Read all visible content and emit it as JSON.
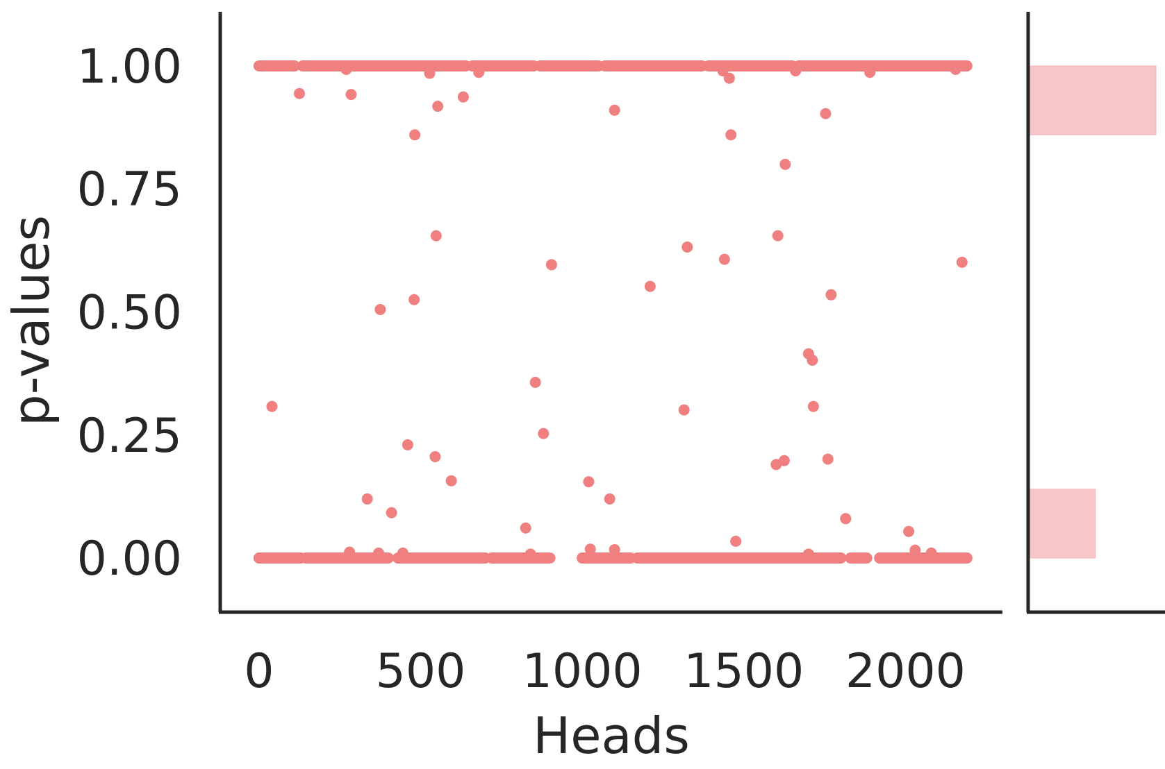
{
  "chart_data": {
    "type": "scatter",
    "title": "",
    "xlabel": "Heads",
    "ylabel": "p-values",
    "xlim": [
      -120,
      2300
    ],
    "ylim": [
      -0.11,
      1.11
    ],
    "xticks": [
      0,
      500,
      1000,
      1500,
      2000
    ],
    "xtick_labels": [
      "0",
      "500",
      "1000",
      "1500",
      "2000"
    ],
    "yticks": [
      0.0,
      0.25,
      0.5,
      0.75,
      1.0
    ],
    "ytick_labels": [
      "0.00",
      "0.25",
      "0.50",
      "0.75",
      "1.00"
    ],
    "grid": false,
    "color": "#f08080",
    "dense_bands": [
      {
        "y": 1.0,
        "x_segments": [
          [
            0,
            110
          ],
          [
            135,
            640
          ],
          [
            660,
            850
          ],
          [
            870,
            1050
          ],
          [
            1070,
            1370
          ],
          [
            1390,
            1650
          ],
          [
            1670,
            2190
          ]
        ]
      },
      {
        "y": 0.0,
        "x_segments": [
          [
            0,
            130
          ],
          [
            145,
            400
          ],
          [
            430,
            700
          ],
          [
            720,
            900
          ],
          [
            1000,
            1150
          ],
          [
            1170,
            1800
          ],
          [
            1830,
            1880
          ],
          [
            1920,
            2190
          ]
        ]
      }
    ],
    "points": [
      {
        "x": 40,
        "y": 0.308
      },
      {
        "x": 125,
        "y": 0.944
      },
      {
        "x": 270,
        "y": 0.993
      },
      {
        "x": 285,
        "y": 0.942
      },
      {
        "x": 335,
        "y": 0.12
      },
      {
        "x": 375,
        "y": 0.505
      },
      {
        "x": 410,
        "y": 0.092
      },
      {
        "x": 460,
        "y": 0.23
      },
      {
        "x": 480,
        "y": 0.525
      },
      {
        "x": 482,
        "y": 0.86
      },
      {
        "x": 528,
        "y": 0.985
      },
      {
        "x": 545,
        "y": 0.206
      },
      {
        "x": 548,
        "y": 0.655
      },
      {
        "x": 553,
        "y": 0.918
      },
      {
        "x": 595,
        "y": 0.157
      },
      {
        "x": 632,
        "y": 0.937
      },
      {
        "x": 680,
        "y": 0.987
      },
      {
        "x": 825,
        "y": 0.061
      },
      {
        "x": 855,
        "y": 0.357
      },
      {
        "x": 880,
        "y": 0.253
      },
      {
        "x": 905,
        "y": 0.596
      },
      {
        "x": 1020,
        "y": 0.155
      },
      {
        "x": 1025,
        "y": 0.018
      },
      {
        "x": 1085,
        "y": 0.12
      },
      {
        "x": 1100,
        "y": 0.91
      },
      {
        "x": 1100,
        "y": 0.017
      },
      {
        "x": 1210,
        "y": 0.552
      },
      {
        "x": 1315,
        "y": 0.301
      },
      {
        "x": 1325,
        "y": 0.632
      },
      {
        "x": 1435,
        "y": 0.99
      },
      {
        "x": 1440,
        "y": 0.607
      },
      {
        "x": 1455,
        "y": 0.975
      },
      {
        "x": 1460,
        "y": 0.86
      },
      {
        "x": 1475,
        "y": 0.034
      },
      {
        "x": 1600,
        "y": 0.19
      },
      {
        "x": 1605,
        "y": 0.655
      },
      {
        "x": 1625,
        "y": 0.198
      },
      {
        "x": 1628,
        "y": 0.8
      },
      {
        "x": 1660,
        "y": 0.99
      },
      {
        "x": 1700,
        "y": 0.415
      },
      {
        "x": 1712,
        "y": 0.402
      },
      {
        "x": 1715,
        "y": 0.308
      },
      {
        "x": 1753,
        "y": 0.903
      },
      {
        "x": 1760,
        "y": 0.201
      },
      {
        "x": 1770,
        "y": 0.535
      },
      {
        "x": 1815,
        "y": 0.08
      },
      {
        "x": 1890,
        "y": 0.987
      },
      {
        "x": 2010,
        "y": 0.054
      },
      {
        "x": 2030,
        "y": 0.016
      },
      {
        "x": 2155,
        "y": 0.993
      },
      {
        "x": 2175,
        "y": 0.601
      },
      {
        "x": 280,
        "y": 0.012
      },
      {
        "x": 370,
        "y": 0.01
      },
      {
        "x": 445,
        "y": 0.01
      },
      {
        "x": 840,
        "y": 0.008
      },
      {
        "x": 1700,
        "y": 0.008
      },
      {
        "x": 2080,
        "y": 0.01
      }
    ],
    "marginal_histogram": {
      "orientation": "horizontal",
      "bins": [
        {
          "y0": 0.0,
          "y1": 0.14,
          "relative_count": 0.52
        },
        {
          "y0": 0.86,
          "y1": 1.0,
          "relative_count": 1.0
        }
      ],
      "color": "#f7c6c6"
    }
  }
}
